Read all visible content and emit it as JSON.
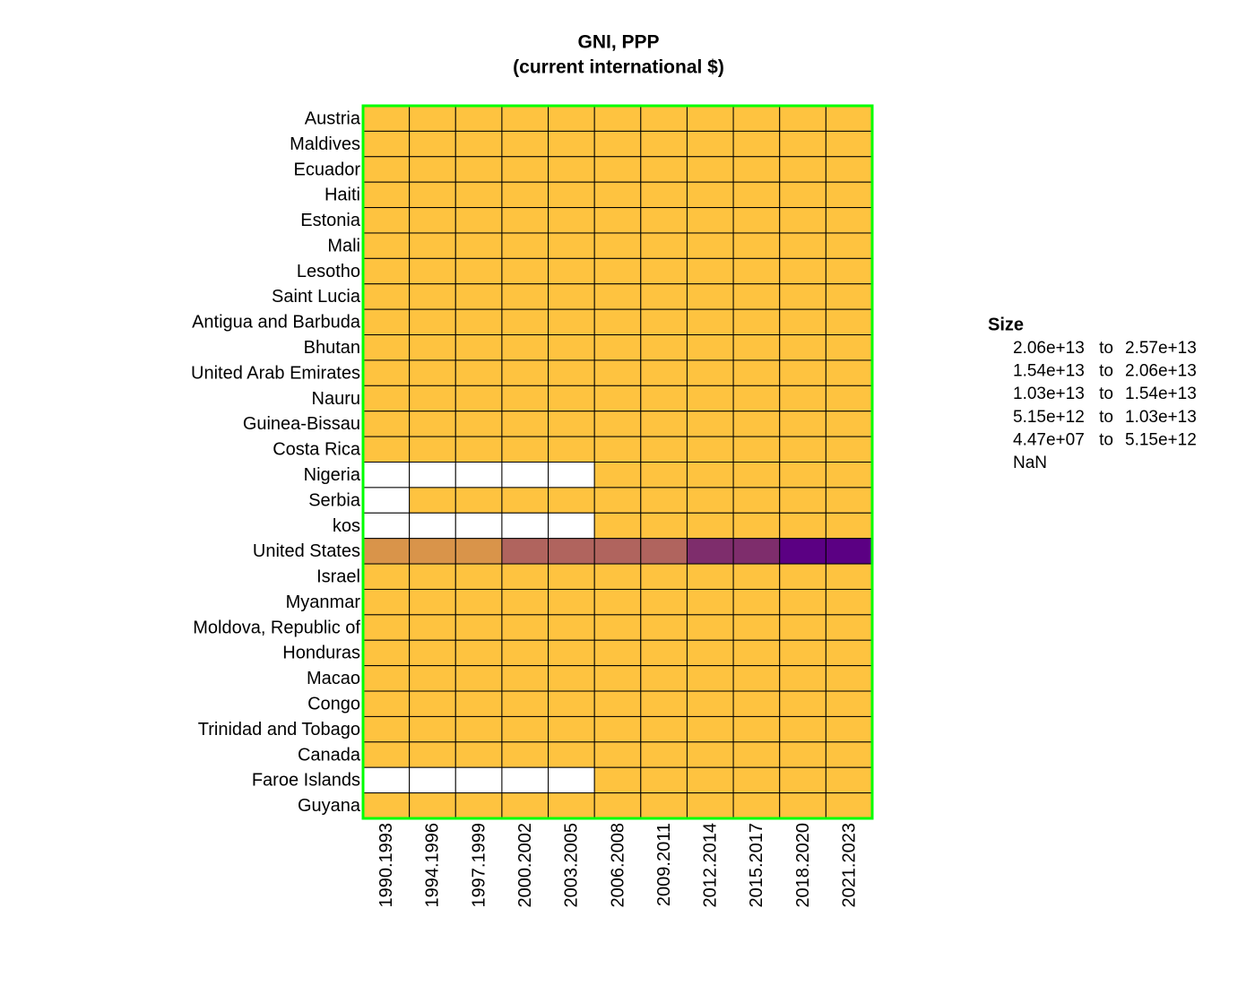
{
  "chart_data": {
    "type": "heatmap",
    "title": "GNI, PPP",
    "subtitle": "(current international $)",
    "x": [
      "1990.1993",
      "1994.1996",
      "1997.1999",
      "2000.2002",
      "2003.2005",
      "2006.2008",
      "2009.2011",
      "2012.2014",
      "2015.2017",
      "2018.2020",
      "2021.2023"
    ],
    "categories": [
      "Austria",
      "Maldives",
      "Ecuador",
      "Haiti",
      "Estonia",
      "Mali",
      "Lesotho",
      "Saint Lucia",
      "Antigua and Barbuda",
      "Bhutan",
      "United Arab Emirates",
      "Nauru",
      "Guinea-Bissau",
      "Costa Rica",
      "Nigeria",
      "Serbia",
      "kos",
      "United States",
      "Israel",
      "Myanmar",
      "Moldova, Republic of",
      "Honduras",
      "Macao",
      "Congo",
      "Trinidad and Tobago",
      "Canada",
      "Faroe Islands",
      "Guyana"
    ],
    "values": [
      [
        160000000000.0,
        190000000000.0,
        210000000000.0,
        240000000000.0,
        270000000000.0,
        320000000000.0,
        340000000000.0,
        390000000000.0,
        430000000000.0,
        500000000000.0,
        560000000000.0
      ],
      [
        1100000000.0,
        1400000000.0,
        1800000000.0,
        2200000000.0,
        2600000000.0,
        3600000000.0,
        4200000000.0,
        5400000000.0,
        6800000000.0,
        7200000000.0,
        10000000000.0
      ],
      [
        52000000000.0,
        60000000000.0,
        65000000000.0,
        70000000000.0,
        85000000000.0,
        110000000000.0,
        130000000000.0,
        160000000000.0,
        180000000000.0,
        190000000000.0,
        220000000000.0
      ],
      [
        13000000000.0,
        12000000000.0,
        14000000000.0,
        16000000000.0,
        16000000000.0,
        17000000000.0,
        18000000000.0,
        26000000000.0,
        30000000000.0,
        33000000000.0,
        35000000000.0
      ],
      [
        12000000000.0,
        11000000000.0,
        13000000000.0,
        16000000000.0,
        21000000000.0,
        28000000000.0,
        27000000000.0,
        33000000000.0,
        39000000000.0,
        46000000000.0,
        58000000000.0
      ],
      [
        6500000000.0,
        7800000000.0,
        9500000000.0,
        11000000000.0,
        14000000000.0,
        18000000000.0,
        22000000000.0,
        25000000000.0,
        33000000000.0,
        43000000000.0,
        53000000000.0
      ],
      [
        1400000000.0,
        1700000000.0,
        2000000000.0,
        2400000000.0,
        3000000000.0,
        4000000000.0,
        4800000000.0,
        5300000000.0,
        5500000000.0,
        5400000000.0,
        5900000000.0
      ],
      [
        800000000.0,
        950000000.0,
        1100000000.0,
        1200000000.0,
        1400000000.0,
        1800000000.0,
        2000000000.0,
        2100000000.0,
        2500000000.0,
        2600000000.0,
        3100000000.0
      ],
      [
        700000000.0,
        800000000.0,
        950000000.0,
        1100000000.0,
        1300000000.0,
        1600000000.0,
        1600000000.0,
        1600000000.0,
        1800000000.0,
        2100000000.0,
        2500000000.0
      ],
      [
        1000000000.0,
        1300000000.0,
        1600000000.0,
        2000000000.0,
        2600000000.0,
        3700000000.0,
        4500000000.0,
        6100000000.0,
        7500000000.0,
        8500000000.0,
        10000000000.0
      ],
      [
        190000000000.0,
        230000000000.0,
        260000000000.0,
        300000000000.0,
        370000000000.0,
        480000000000.0,
        520000000000.0,
        590000000000.0,
        640000000000.0,
        720000000000.0,
        840000000000.0
      ],
      [
        44700000.0,
        50000000.0,
        55000000.0,
        60000000.0,
        65000000.0,
        80000000.0,
        100000000.0,
        160000000.0,
        210000000.0,
        250000000.0,
        290000000.0
      ],
      [
        1300000000.0,
        1500000000.0,
        1300000000.0,
        1400000000.0,
        1600000000.0,
        1900000000.0,
        2300000000.0,
        2600000000.0,
        3100000000.0,
        4000000000.0,
        5100000000.0
      ],
      [
        18000000000.0,
        22000000000.0,
        27000000000.0,
        32000000000.0,
        38000000000.0,
        49000000000.0,
        56000000000.0,
        69000000000.0,
        84000000000.0,
        100000000000.0,
        130000000000.0
      ],
      [
        null,
        null,
        null,
        null,
        null,
        570000000000.0,
        700000000000.0,
        840000000000.0,
        960000000000.0,
        1100000000000.0,
        1300000000000.0
      ],
      [
        null,
        48000000000.0,
        51000000000.0,
        56000000000.0,
        68000000000.0,
        91000000000.0,
        100000000000.0,
        110000000000.0,
        120000000000.0,
        140000000000.0,
        170000000000.0
      ],
      [
        null,
        null,
        null,
        null,
        null,
        10000000000.0,
        11000000000.0,
        14000000000.0,
        16000000000.0,
        19000000000.0,
        24000000000.0
      ],
      [
        6600000000000.0,
        7900000000000.0,
        9200000000000.0,
        10800000000000.0,
        12400000000000.0,
        14500000000000.0,
        14900000000000.0,
        16800000000000.0,
        19400000000000.0,
        21300000000000.0,
        25700000000000.0
      ],
      [
        55000000000.0,
        70000000000.0,
        82000000000.0,
        100000000000.0,
        120000000000.0,
        150000000000.0,
        170000000000.0,
        230000000000.0,
        290000000000.0,
        360000000000.0,
        460000000000.0
      ],
      [
        22000000000.0,
        30000000000.0,
        38000000000.0,
        50000000000.0,
        74000000000.0,
        110000000000.0,
        140000000000.0,
        190000000000.0,
        240000000000.0,
        270000000000.0,
        270000000000.0
      ],
      [
        10000000000.0,
        8000000000.0,
        8000000000.0,
        9000000000.0,
        11000000000.0,
        14000000000.0,
        15000000000.0,
        19000000000.0,
        23000000000.0,
        27000000000.0,
        38000000000.0
      ],
      [
        12000000000.0,
        14000000000.0,
        16000000000.0,
        18000000000.0,
        21000000000.0,
        26000000000.0,
        29000000000.0,
        35000000000.0,
        42000000000.0,
        50000000000.0,
        64000000000.0
      ],
      [
        8000000000.0,
        10000000000.0,
        10000000000.0,
        12000000000.0,
        17000000000.0,
        26000000000.0,
        35000000000.0,
        58000000000.0,
        58000000000.0,
        70000000000.0,
        60000000000.0
      ],
      [
        6000000000.0,
        7000000000.0,
        8000000000.0,
        9000000000.0,
        10000000000.0,
        12000000000.0,
        15000000000.0,
        16000000000.0,
        17000000000.0,
        16000000000.0,
        19000000000.0
      ],
      [
        10000000000.0,
        11000000000.0,
        13000000000.0,
        17000000000.0,
        23000000000.0,
        32000000000.0,
        34000000000.0,
        36000000000.0,
        36000000000.0,
        34000000000.0,
        42000000000.0
      ],
      [
        550000000000.0,
        630000000000.0,
        730000000000.0,
        880000000000.0,
        1000000000000.0,
        1200000000000.0,
        1300000000000.0,
        1500000000000.0,
        1700000000000.0,
        1900000000000.0,
        2300000000000.0
      ],
      [
        null,
        null,
        null,
        null,
        null,
        2000000000.0,
        2100000000.0,
        2200000000.0,
        2500000000.0,
        2900000000.0,
        3400000000.0
      ],
      [
        1500000000.0,
        2000000000.0,
        2400000000.0,
        2600000000.0,
        2800000000.0,
        3500000000.0,
        4400000000.0,
        5500000000.0,
        6500000000.0,
        10000000000.0,
        45000000000.0
      ]
    ],
    "legend_title": "Size",
    "range_word": "to",
    "bins": [
      {
        "lower": {
          "value": 20600000000000.0,
          "label": "2.06e+13"
        },
        "upper": {
          "value": 25700000000000.0,
          "label": "2.57e+13"
        },
        "color": "#5b0083"
      },
      {
        "lower": {
          "value": 15400000000000.0,
          "label": "1.54e+13"
        },
        "upper": {
          "value": 20600000000000.0,
          "label": "2.06e+13"
        },
        "color": "#7e2d6c"
      },
      {
        "lower": {
          "value": 10300000000000.0,
          "label": "1.03e+13"
        },
        "upper": {
          "value": 15400000000000.0,
          "label": "1.54e+13"
        },
        "color": "#b0645e"
      },
      {
        "lower": {
          "value": 5150000000000.0,
          "label": "5.15e+12"
        },
        "upper": {
          "value": 10300000000000.0,
          "label": "1.03e+13"
        },
        "color": "#d9944a"
      },
      {
        "lower": {
          "value": 44700000.0,
          "label": "4.47e+07"
        },
        "upper": {
          "value": 5150000000000.0,
          "label": "5.15e+12"
        },
        "color": "#fec340"
      }
    ],
    "nan_label": "NaN",
    "nan_color": "#ffffff",
    "cell_border_color": "#000000",
    "frame_color": "#00ff00"
  }
}
